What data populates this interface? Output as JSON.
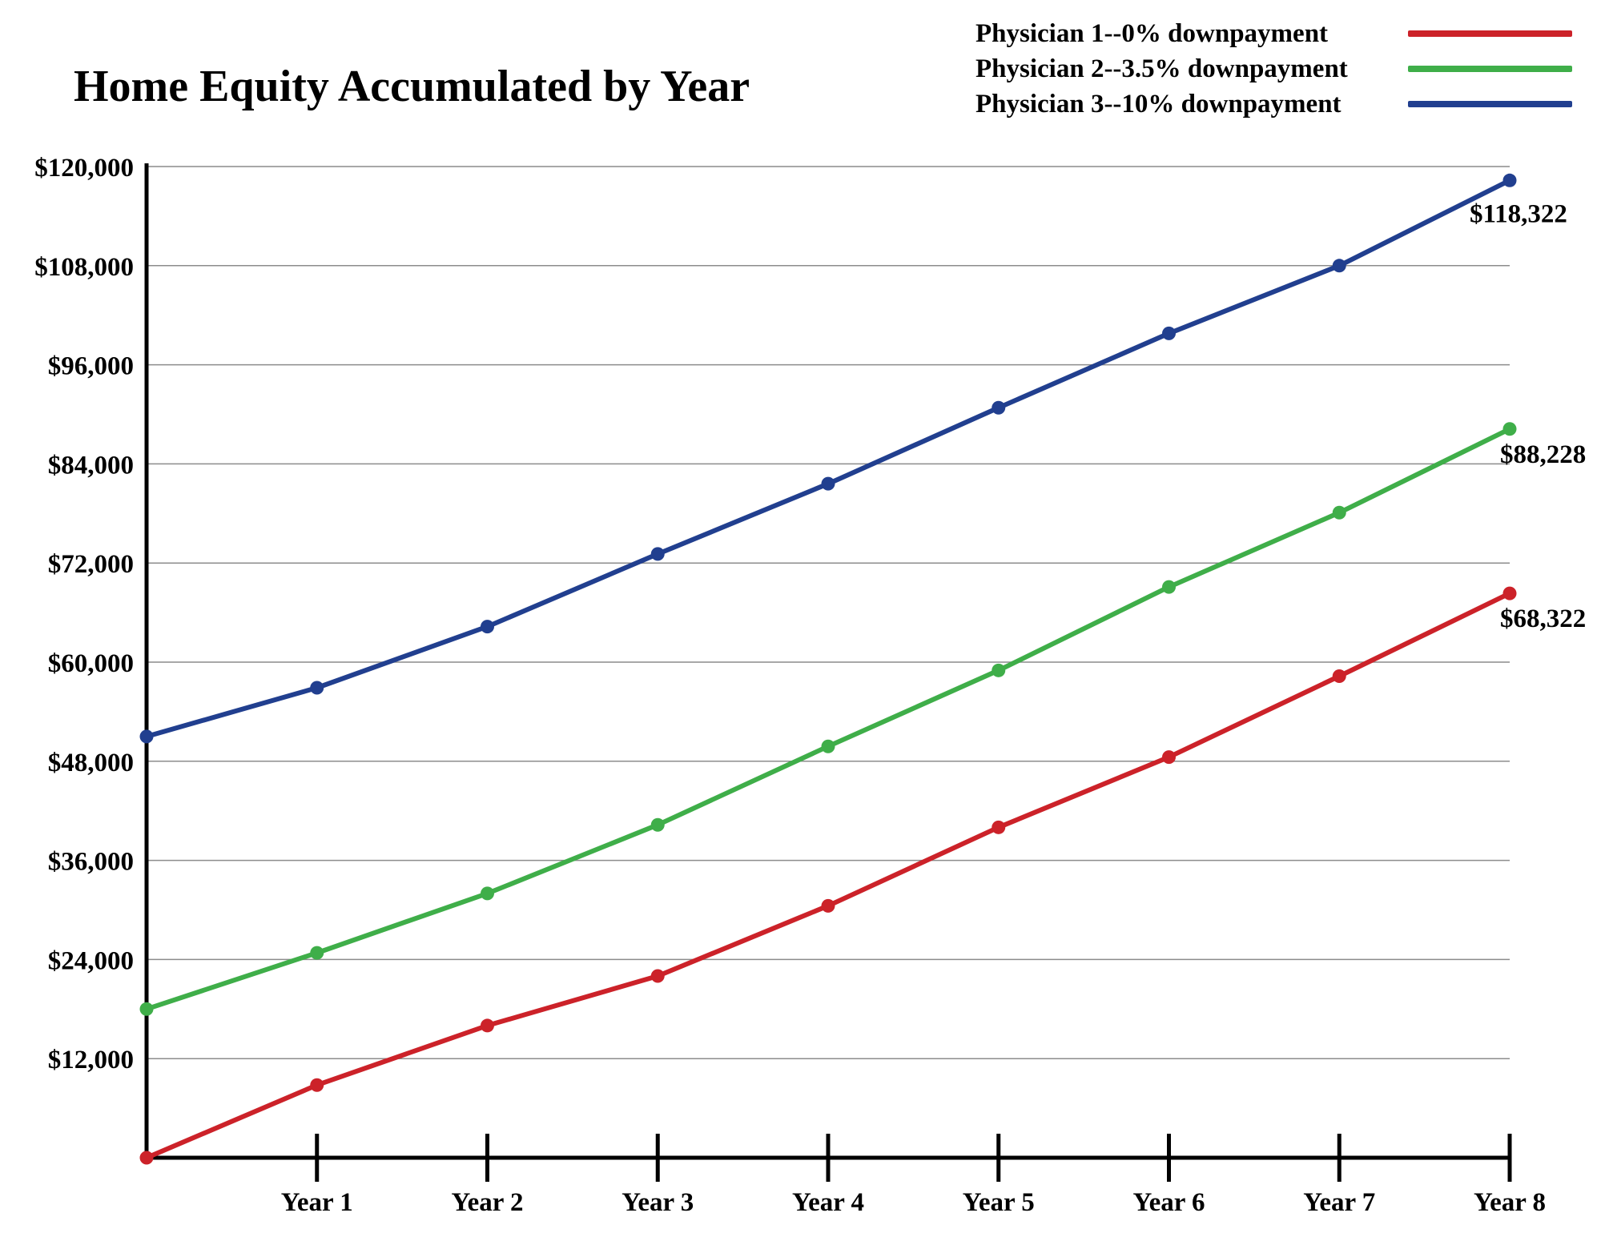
{
  "chart_data": {
    "type": "line",
    "title": "Home Equity Accumulated by Year",
    "xlabel": "",
    "ylabel": "",
    "categories": [
      "",
      "Year 1",
      "Year 2",
      "Year 3",
      "Year 4",
      "Year 5",
      "Year 6",
      "Year 7",
      "Year 8"
    ],
    "ylim": [
      0,
      120000
    ],
    "yticks": [
      12000,
      24000,
      36000,
      48000,
      60000,
      72000,
      84000,
      96000,
      108000,
      120000
    ],
    "ytick_labels": [
      "$12,000",
      "$24,000",
      "$36,000",
      "$48,000",
      "$60,000",
      "$72,000",
      "$84,000",
      "$96,000",
      "$108,000",
      "$120,000"
    ],
    "grid": true,
    "legend_position": "top-right",
    "series": [
      {
        "name": "Physician 1--0% downpayment",
        "color": "#cc2229",
        "values": [
          0,
          8800,
          16000,
          22000,
          30500,
          40000,
          48500,
          58300,
          68322
        ],
        "end_label": "$68,322"
      },
      {
        "name": "Physician 2--3.5% downpayment",
        "color": "#3fae49",
        "values": [
          18000,
          24800,
          32000,
          40300,
          49800,
          59000,
          69100,
          78100,
          88228
        ],
        "end_label": "$88,228"
      },
      {
        "name": "Physician 3--10% downpayment",
        "color": "#213f8f",
        "values": [
          51000,
          56900,
          64300,
          73100,
          81600,
          90800,
          99800,
          108000,
          118322
        ],
        "end_label": "$118,322"
      }
    ]
  }
}
